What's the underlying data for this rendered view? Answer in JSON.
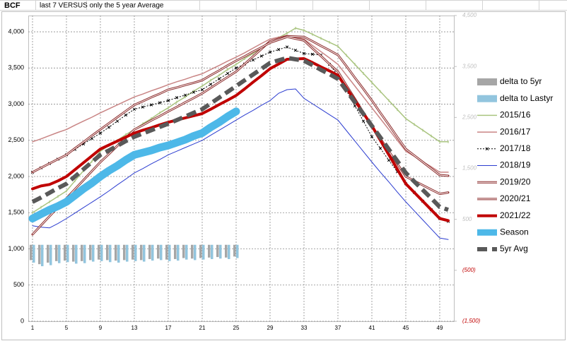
{
  "chart_data": {
    "type": "line",
    "unit_label": "BCF",
    "title": "last 7 VERSUS only the 5 year Average",
    "categories": [
      "1",
      null,
      null,
      null,
      "5",
      null,
      null,
      null,
      "9",
      null,
      null,
      null,
      "13",
      null,
      null,
      null,
      "17",
      null,
      null,
      null,
      "21",
      null,
      null,
      null,
      "25",
      null,
      null,
      null,
      "29",
      null,
      null,
      null,
      "33",
      null,
      null,
      null,
      "37",
      null,
      null,
      null,
      "41",
      null,
      null,
      null,
      "45",
      null,
      null,
      null,
      "49",
      null
    ],
    "ylim": [
      0,
      4225
    ],
    "yticks": [
      0,
      500,
      {
        "value": 1000,
        "label": "1,000"
      },
      {
        "value": 1500,
        "label": "1,500"
      },
      {
        "value": 2000,
        "label": "2,000"
      },
      {
        "value": 2500,
        "label": "2,500"
      },
      {
        "value": 3000,
        "label": "3,000"
      },
      {
        "value": 3500,
        "label": "3,500"
      },
      {
        "value": 4000,
        "label": "4,000"
      }
    ],
    "y2lim": [
      -1500,
      4500
    ],
    "y2ticks": [
      {
        "value": -1500,
        "label": "(1,500)"
      },
      {
        "value": -500,
        "label": "(500)"
      },
      500,
      {
        "value": 1500,
        "label": "1,500"
      },
      {
        "value": 2500,
        "label": "2,500"
      },
      {
        "value": 3500,
        "label": "3,500"
      },
      {
        "value": 4500,
        "label": "4,500"
      }
    ],
    "grid": true,
    "legend": "right",
    "series": [
      {
        "name": "delta to 5yr",
        "type": "bar",
        "axis": "y2",
        "color": "#a6a6a6",
        "values": [
          -300,
          -380,
          -350,
          -320,
          -310,
          -330,
          -320,
          -300,
          -290,
          -300,
          -310,
          -300,
          -290,
          -300,
          -280,
          -270,
          -290,
          -280,
          -260,
          -270,
          -260,
          -250,
          -240,
          -250,
          -230,
          null,
          null,
          null,
          null,
          null,
          null,
          null,
          null,
          null,
          null,
          null,
          null,
          null,
          null,
          null,
          null,
          null,
          null,
          null,
          null,
          null,
          null,
          null,
          null,
          null
        ]
      },
      {
        "name": "delta to Lastyr",
        "type": "bar",
        "axis": "y2",
        "color": "#92c5de",
        "values": [
          -350,
          -420,
          -400,
          -360,
          -340,
          -370,
          -360,
          -330,
          -320,
          -340,
          -350,
          -330,
          -320,
          -330,
          -310,
          -300,
          -320,
          -310,
          -290,
          -300,
          -290,
          -280,
          -270,
          -280,
          -260,
          null,
          null,
          null,
          null,
          null,
          null,
          null,
          null,
          null,
          null,
          null,
          null,
          null,
          null,
          null,
          null,
          null,
          null,
          null,
          null,
          null,
          null,
          null,
          null,
          null
        ]
      },
      {
        "name": "2015/16",
        "color": "#a9c47f",
        "width": 1.5,
        "marker": "tick",
        "values": [
          1500,
          1575,
          1650,
          1725,
          1800,
          1940,
          2080,
          2210,
          2350,
          2430,
          2500,
          2580,
          2650,
          2730,
          2800,
          2880,
          2950,
          3030,
          3100,
          3180,
          3250,
          3330,
          3400,
          3480,
          3550,
          3630,
          3700,
          3780,
          3850,
          3920,
          3980,
          4050,
          4020,
          3965,
          3910,
          3855,
          3800,
          3675,
          3550,
          3425,
          3300,
          3175,
          3050,
          2925,
          2800,
          2720,
          2640,
          2560,
          2480,
          2480
        ]
      },
      {
        "name": "2016/17",
        "color": "#c98585",
        "width": 1.5,
        "values": [
          2480,
          2520,
          2565,
          2610,
          2650,
          2710,
          2765,
          2820,
          2880,
          2935,
          2990,
          3045,
          3100,
          3140,
          3185,
          3225,
          3270,
          3310,
          3345,
          3385,
          3420,
          3480,
          3535,
          3595,
          3650,
          3710,
          3775,
          3840,
          3900,
          3925,
          3950,
          3925,
          3900,
          3810,
          3725,
          3640,
          3550,
          3400,
          3250,
          3100,
          2950,
          2800,
          2650,
          2500,
          2350,
          2280,
          2205,
          2135,
          2060,
          2060
        ]
      },
      {
        "name": "2017/18",
        "color": "#000000",
        "width": 1,
        "dash": "2 2",
        "marker": "x",
        "values": [
          2060,
          2120,
          2180,
          2240,
          2300,
          2375,
          2450,
          2525,
          2600,
          2680,
          2765,
          2850,
          2930,
          2960,
          2990,
          3020,
          3050,
          3090,
          3125,
          3165,
          3200,
          3275,
          3350,
          3425,
          3500,
          3555,
          3610,
          3665,
          3720,
          3755,
          3790,
          3745,
          3700,
          3690,
          3680,
          3550,
          3400,
          3190,
          2975,
          2765,
          2550,
          2390,
          2225,
          2065,
          1900,
          1780,
          1660,
          1540,
          1420,
          1380
        ]
      },
      {
        "name": "2018/19",
        "color": "#2b3cd0",
        "width": 1,
        "values": [
          1320,
          1300,
          1290,
          1350,
          1420,
          1495,
          1570,
          1645,
          1720,
          1800,
          1885,
          1965,
          2050,
          2110,
          2175,
          2235,
          2300,
          2350,
          2400,
          2450,
          2500,
          2570,
          2640,
          2710,
          2780,
          2850,
          2915,
          2985,
          3050,
          3150,
          3200,
          3210,
          3080,
          3005,
          2930,
          2855,
          2780,
          2635,
          2490,
          2345,
          2200,
          2060,
          1925,
          1785,
          1650,
          1525,
          1400,
          1275,
          1150,
          1130
        ]
      },
      {
        "name": "2019/20",
        "color": "#8b2a2a",
        "width": 3,
        "double": true,
        "values": [
          1200,
          1325,
          1450,
          1575,
          1700,
          1825,
          1950,
          2075,
          2200,
          2310,
          2425,
          2535,
          2650,
          2710,
          2775,
          2835,
          2900,
          2960,
          3025,
          3085,
          3150,
          3225,
          3300,
          3375,
          3450,
          3555,
          3660,
          3765,
          3870,
          3905,
          3940,
          3935,
          3930,
          3870,
          3805,
          3745,
          3680,
          3525,
          3365,
          3210,
          3050,
          2880,
          2715,
          2545,
          2380,
          2290,
          2200,
          2110,
          2020,
          2010
        ]
      },
      {
        "name": "2020/21",
        "color": "#8b2a2a",
        "width": 3,
        "double": true,
        "values": [
          2060,
          2120,
          2180,
          2240,
          2300,
          2390,
          2475,
          2565,
          2650,
          2735,
          2820,
          2905,
          2990,
          3040,
          3095,
          3145,
          3200,
          3230,
          3265,
          3295,
          3330,
          3400,
          3465,
          3535,
          3600,
          3660,
          3725,
          3785,
          3850,
          3890,
          3930,
          3905,
          3880,
          3770,
          3665,
          3555,
          3450,
          3260,
          3075,
          2885,
          2700,
          2525,
          2350,
          2175,
          2000,
          1940,
          1880,
          1820,
          1760,
          1780
        ]
      },
      {
        "name": "2021/22",
        "color": "#c00000",
        "width": 4,
        "values": [
          1830,
          1870,
          1890,
          1940,
          2000,
          2095,
          2190,
          2285,
          2380,
          2435,
          2490,
          2545,
          2600,
          2640,
          2675,
          2715,
          2750,
          2780,
          2810,
          2840,
          2870,
          2930,
          2995,
          3055,
          3120,
          3210,
          3305,
          3395,
          3490,
          3555,
          3620,
          3625,
          3630,
          3575,
          3515,
          3460,
          3400,
          3225,
          3050,
          2875,
          2700,
          2500,
          2300,
          2100,
          1900,
          1780,
          1660,
          1540,
          1420,
          1390
        ]
      },
      {
        "name": "Season",
        "color": "#4db8e8",
        "width": 11,
        "values": [
          1420,
          1480,
          1540,
          1590,
          1650,
          1740,
          1830,
          1910,
          2000,
          2080,
          2150,
          2230,
          2300,
          2330,
          2360,
          2400,
          2430,
          2470,
          2510,
          2560,
          2600,
          2680,
          2750,
          2830,
          2900,
          null,
          null,
          null,
          null,
          null,
          null,
          null,
          null,
          null,
          null,
          null,
          null,
          null,
          null,
          null,
          null,
          null,
          null,
          null,
          null,
          null,
          null,
          null,
          null,
          null
        ]
      },
      {
        "name": "5yr Avg",
        "color": "#595959",
        "width": 6,
        "dash": "14 7",
        "values": [
          1650,
          1710,
          1775,
          1840,
          1900,
          2000,
          2100,
          2200,
          2300,
          2360,
          2425,
          2490,
          2550,
          2595,
          2640,
          2685,
          2730,
          2780,
          2830,
          2880,
          2930,
          3010,
          3090,
          3170,
          3250,
          3330,
          3410,
          3490,
          3570,
          3605,
          3640,
          3620,
          3600,
          3540,
          3475,
          3415,
          3350,
          3190,
          3025,
          2865,
          2700,
          2540,
          2375,
          2215,
          2050,
          1930,
          1815,
          1700,
          1580,
          1540
        ]
      }
    ]
  }
}
